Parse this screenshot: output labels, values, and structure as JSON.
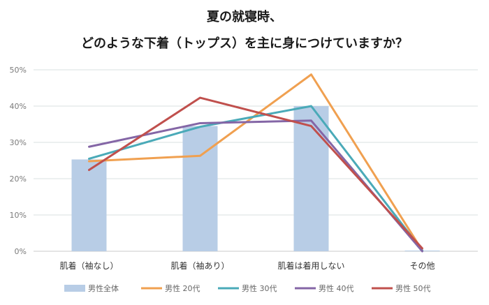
{
  "chart_data": {
    "type": "bar+line",
    "title_lines": [
      "夏の就寝時、",
      "どのような下着（トップス）を主に身につけていますか？"
    ],
    "categories": [
      "肌着（袖なし）",
      "肌着（袖あり）",
      "肌着は着用しない",
      "その他"
    ],
    "y_ticks": [
      "0%",
      "10%",
      "20%",
      "30%",
      "40%",
      "50%"
    ],
    "ylim": [
      0,
      50
    ],
    "grid": true,
    "legend_position": "bottom",
    "series": [
      {
        "name": "男性全体",
        "kind": "bar",
        "color": "#b8cde6",
        "values": [
          25.3,
          34.5,
          40.0,
          0.2
        ]
      },
      {
        "name": "男性 20代",
        "kind": "line",
        "color": "#f0a050",
        "values": [
          24.8,
          26.3,
          48.7,
          0.2
        ]
      },
      {
        "name": "男性 30代",
        "kind": "line",
        "color": "#4aaab8",
        "values": [
          25.5,
          34.3,
          40.0,
          0.2
        ]
      },
      {
        "name": "男性 40代",
        "kind": "line",
        "color": "#8466a6",
        "values": [
          28.8,
          35.3,
          36.0,
          0.0
        ]
      },
      {
        "name": "男性 50代",
        "kind": "line",
        "color": "#c0504d",
        "values": [
          22.4,
          42.3,
          34.5,
          0.8
        ]
      }
    ]
  }
}
